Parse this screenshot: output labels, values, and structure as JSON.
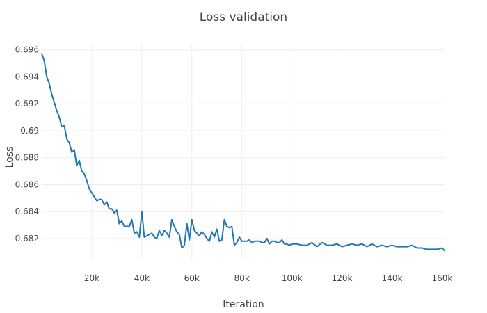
{
  "chart_data": {
    "type": "line",
    "title": "Loss validation",
    "xlabel": "Iteration",
    "ylabel": "Loss",
    "xlim": [
      0,
      161000
    ],
    "ylim": [
      0.6805,
      0.6965
    ],
    "x_ticks": [
      {
        "value": 20000,
        "label": "20k"
      },
      {
        "value": 40000,
        "label": "40k"
      },
      {
        "value": 60000,
        "label": "60k"
      },
      {
        "value": 80000,
        "label": "80k"
      },
      {
        "value": 100000,
        "label": "100k"
      },
      {
        "value": 120000,
        "label": "120k"
      },
      {
        "value": 140000,
        "label": "140k"
      },
      {
        "value": 160000,
        "label": "160k"
      }
    ],
    "y_ticks": [
      {
        "value": 0.682,
        "label": "0.682"
      },
      {
        "value": 0.684,
        "label": "0.684"
      },
      {
        "value": 0.686,
        "label": "0.686"
      },
      {
        "value": 0.688,
        "label": "0.688"
      },
      {
        "value": 0.69,
        "label": "0.69"
      },
      {
        "value": 0.692,
        "label": "0.692"
      },
      {
        "value": 0.694,
        "label": "0.694"
      },
      {
        "value": 0.696,
        "label": "0.696"
      }
    ],
    "grid": true,
    "line_color": "#1f77b4",
    "series": [
      {
        "x": [
          0,
          1000,
          2000,
          3000,
          4000,
          5000,
          6000,
          7000,
          8000,
          9000,
          10000,
          11000,
          12000,
          13000,
          14000,
          15000,
          16000,
          17000,
          18000,
          19000,
          20000,
          21000,
          22000,
          23000,
          24000,
          25000,
          26000,
          27000,
          28000,
          29000,
          30000,
          31000,
          32000,
          33000,
          34000,
          35000,
          36000,
          37000,
          38000,
          39000,
          40000,
          41000,
          42000,
          43000,
          44000,
          45000,
          46000,
          47000,
          48000,
          49000,
          50000,
          51000,
          52000,
          53000,
          54000,
          55000,
          56000,
          57000,
          58000,
          59000,
          60000,
          61000,
          62000,
          63000,
          64000,
          65000,
          66000,
          67000,
          68000,
          69000,
          70000,
          71000,
          72000,
          73000,
          74000,
          75000,
          76000,
          77000,
          78000,
          79000,
          80000,
          81000,
          82000,
          83000,
          84000,
          85000,
          86000,
          87000,
          88000,
          89000,
          90000,
          91000,
          92000,
          93000,
          94000,
          95000,
          96000,
          97000,
          98000,
          99000,
          100000,
          102000,
          104000,
          106000,
          108000,
          110000,
          112000,
          114000,
          116000,
          118000,
          120000,
          122000,
          124000,
          126000,
          128000,
          130000,
          132000,
          134000,
          136000,
          138000,
          140000,
          142000,
          144000,
          146000,
          148000,
          150000,
          152000,
          154000,
          156000,
          158000,
          160000,
          161000
        ],
        "y": [
          0.6957,
          0.6952,
          0.694,
          0.6935,
          0.6927,
          0.6921,
          0.6915,
          0.691,
          0.6903,
          0.6904,
          0.6894,
          0.6891,
          0.6884,
          0.6886,
          0.6874,
          0.6878,
          0.687,
          0.6868,
          0.6863,
          0.6857,
          0.6854,
          0.6851,
          0.6848,
          0.6849,
          0.6849,
          0.6845,
          0.6847,
          0.6842,
          0.6842,
          0.6839,
          0.6841,
          0.6831,
          0.6833,
          0.6829,
          0.6829,
          0.6829,
          0.6834,
          0.6824,
          0.6825,
          0.6821,
          0.684,
          0.6821,
          0.6822,
          0.6823,
          0.6824,
          0.6821,
          0.682,
          0.6826,
          0.6822,
          0.6826,
          0.6824,
          0.6821,
          0.6834,
          0.6829,
          0.6825,
          0.6823,
          0.6813,
          0.6815,
          0.6831,
          0.6819,
          0.6834,
          0.6826,
          0.6824,
          0.6822,
          0.6825,
          0.6823,
          0.682,
          0.6818,
          0.6825,
          0.6821,
          0.6827,
          0.6818,
          0.6819,
          0.6834,
          0.6829,
          0.6828,
          0.6829,
          0.6815,
          0.6817,
          0.6821,
          0.6818,
          0.6818,
          0.6818,
          0.6819,
          0.6817,
          0.6818,
          0.6818,
          0.6818,
          0.6817,
          0.6817,
          0.682,
          0.6816,
          0.6818,
          0.6818,
          0.6817,
          0.6817,
          0.6819,
          0.6816,
          0.6816,
          0.6815,
          0.6816,
          0.6816,
          0.6815,
          0.6815,
          0.6817,
          0.6814,
          0.6817,
          0.6815,
          0.6815,
          0.6816,
          0.6814,
          0.6815,
          0.6816,
          0.6815,
          0.6816,
          0.6814,
          0.6816,
          0.6814,
          0.6815,
          0.6814,
          0.6815,
          0.6814,
          0.6814,
          0.6814,
          0.6815,
          0.6813,
          0.6813,
          0.6812,
          0.6812,
          0.6812,
          0.6813,
          0.6811
        ]
      }
    ]
  }
}
